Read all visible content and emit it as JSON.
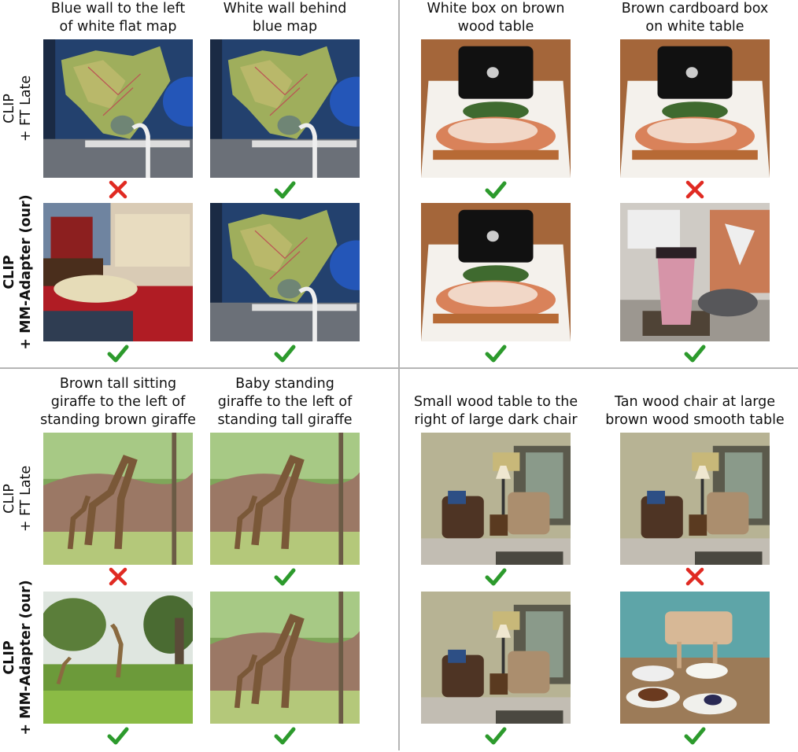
{
  "row_labels": [
    {
      "line1": "CLIP",
      "line2": "+ FT Late"
    },
    {
      "line1": "CLIP",
      "line2": "+ MM-Adapter (our)"
    }
  ],
  "panels": [
    {
      "captions": [
        [
          "Blue wall to the left",
          "of white flat map"
        ],
        [
          "White wall behind",
          "blue map"
        ]
      ]
    },
    {
      "captions": [
        [
          "White box on brown",
          "wood table"
        ],
        [
          "Brown cardboard box",
          "on white table"
        ]
      ]
    },
    {
      "captions": [
        [
          "Brown tall sitting",
          "giraffe to the left of",
          "standing brown giraffe"
        ],
        [
          "Baby standing",
          "giraffe to the left of",
          "standing tall giraffe"
        ]
      ]
    },
    {
      "captions": [
        [
          "Small wood table to the",
          "right of large dark chair"
        ],
        [
          "Tan wood chair at large",
          "brown wood smooth table"
        ]
      ]
    }
  ]
}
